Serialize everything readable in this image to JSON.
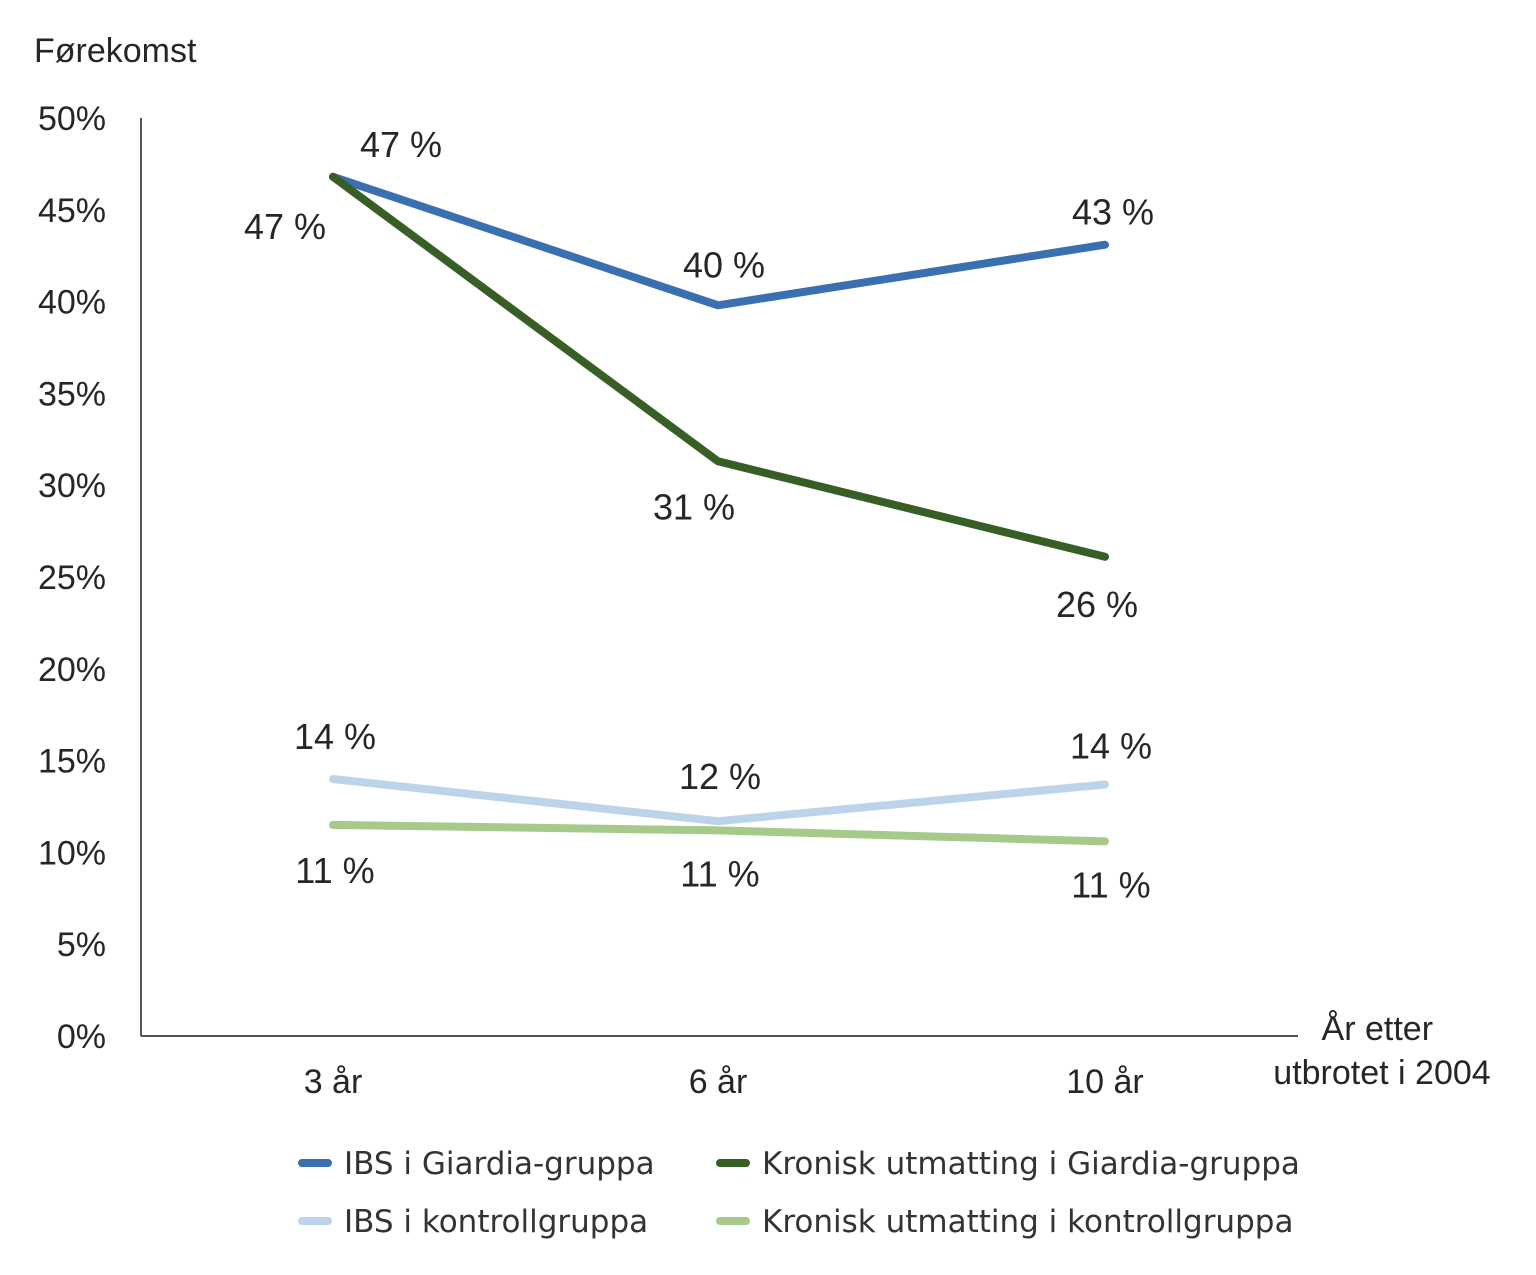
{
  "chart_data": {
    "type": "line",
    "ylabel": "Førekomst",
    "xlabel_lines": [
      "År etter",
      "utbrotet i 2004"
    ],
    "categories": [
      "3 år",
      "6 år",
      "10 år"
    ],
    "ylim": [
      0,
      50
    ],
    "y_ticks": [
      0,
      5,
      10,
      15,
      20,
      25,
      30,
      35,
      40,
      45,
      50
    ],
    "y_tick_labels": [
      "0%",
      "5%",
      "10%",
      "15%",
      "20%",
      "25%",
      "30%",
      "35%",
      "40%",
      "45%",
      "50%"
    ],
    "grid": false,
    "legend_position": "bottom",
    "series": [
      {
        "name": "IBS i Giardia-gruppa",
        "color": "#3a6fb0",
        "values": [
          46.8,
          39.8,
          43.1
        ],
        "labels": [
          "47 %",
          "40 %",
          "43 %"
        ]
      },
      {
        "name": "Kronisk utmatting i Giardia-gruppa",
        "color": "#375e25",
        "values": [
          46.8,
          31.3,
          26.1
        ],
        "labels": [
          "47 %",
          "31 %",
          "26 %"
        ]
      },
      {
        "name": "IBS i kontrollgruppa",
        "color": "#bcd4ea",
        "values": [
          14.0,
          11.7,
          13.7
        ],
        "labels": [
          "14 %",
          "12 %",
          "14 %"
        ]
      },
      {
        "name": "Kronisk utmatting i kontrollgruppa",
        "color": "#a6ca8a",
        "values": [
          11.5,
          11.2,
          10.6
        ],
        "labels": [
          "11 %",
          "11 %",
          "11 %"
        ]
      }
    ]
  }
}
